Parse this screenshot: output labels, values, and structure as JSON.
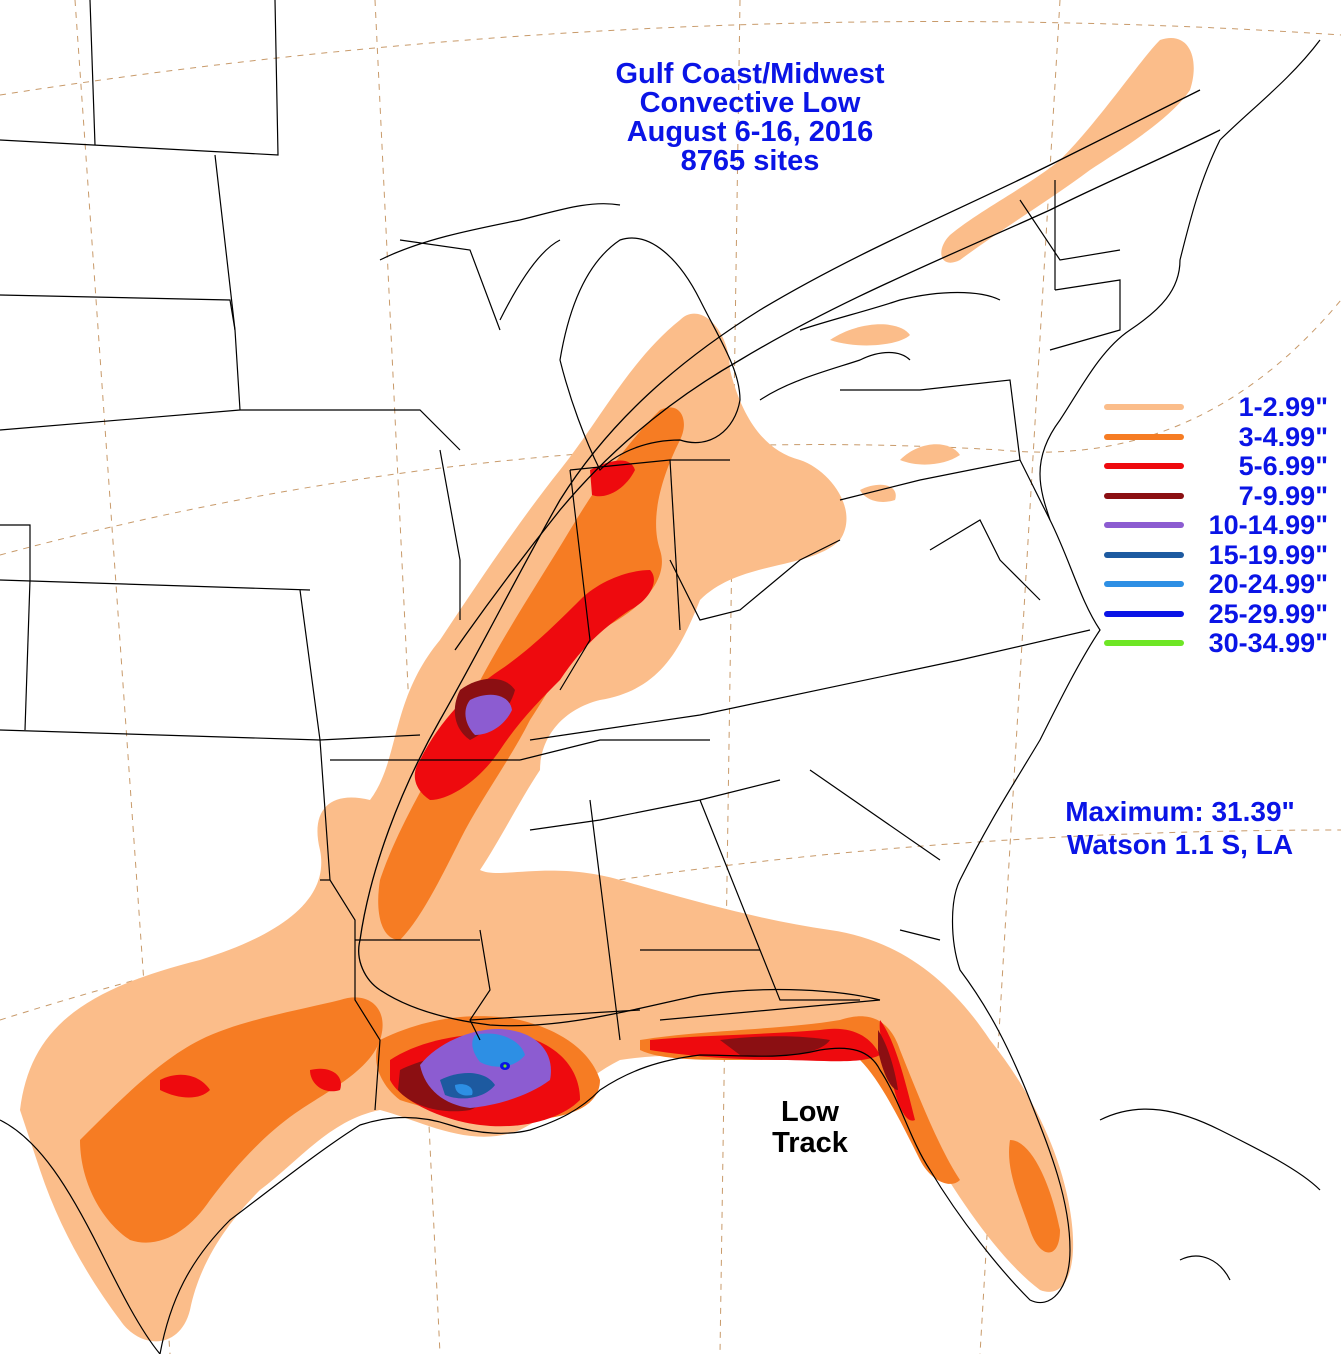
{
  "title": {
    "line1": "Gulf Coast/Midwest",
    "line2": "Convective Low",
    "line3": "August 6-16, 2016",
    "line4": "8765 sites"
  },
  "legend": [
    {
      "label": "1-2.99\"",
      "color": "#fbbd8a"
    },
    {
      "label": "3-4.99\"",
      "color": "#f67c23"
    },
    {
      "label": "5-6.99\"",
      "color": "#ee0a0e"
    },
    {
      "label": "7-9.99\"",
      "color": "#8b0f12"
    },
    {
      "label": "10-14.99\"",
      "color": "#8c5cd1"
    },
    {
      "label": "15-19.99\"",
      "color": "#1d5aa0"
    },
    {
      "label": "20-24.99\"",
      "color": "#2d8fe4"
    },
    {
      "label": "25-29.99\"",
      "color": "#0a14e6"
    },
    {
      "label": "30-34.99\"",
      "color": "#6ee625"
    }
  ],
  "maximum": {
    "line1": "Maximum:  31.39\"",
    "line2": "Watson 1.1 S, LA"
  },
  "track_label": {
    "line1": "Low",
    "line2": "Track"
  },
  "colors": {
    "text_blue": "#0a14e6",
    "boundary": "#000000",
    "graticule": "#c89a6a"
  }
}
